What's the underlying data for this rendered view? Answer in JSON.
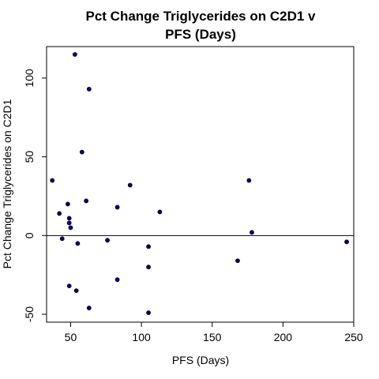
{
  "chart_data": {
    "type": "scatter",
    "title_lines": [
      "Pct Change Triglycerides on C2D1 v",
      "PFS (Days)"
    ],
    "xlabel": "PFS (Days)",
    "ylabel": "Pct Change Triglycerides on C2D1",
    "xlim": [
      33,
      250
    ],
    "ylim": [
      -55,
      120
    ],
    "x_ticks": [
      50,
      100,
      150,
      200,
      250
    ],
    "y_ticks": [
      -50,
      0,
      50,
      100
    ],
    "x_tick_labels": [
      "50",
      "100",
      "150",
      "200",
      "250"
    ],
    "y_tick_labels": [
      "-50",
      "0",
      "50",
      "100"
    ],
    "reference_line_y": 0,
    "point_color": "#00007a",
    "points": [
      {
        "x": 53,
        "y": 115
      },
      {
        "x": 63,
        "y": 93
      },
      {
        "x": 58,
        "y": 53
      },
      {
        "x": 37,
        "y": 35
      },
      {
        "x": 92,
        "y": 32
      },
      {
        "x": 61,
        "y": 22
      },
      {
        "x": 48,
        "y": 20
      },
      {
        "x": 83,
        "y": 18
      },
      {
        "x": 113,
        "y": 15
      },
      {
        "x": 42,
        "y": 14
      },
      {
        "x": 49,
        "y": 11
      },
      {
        "x": 49,
        "y": 8
      },
      {
        "x": 50,
        "y": 5
      },
      {
        "x": 176,
        "y": 35
      },
      {
        "x": 178,
        "y": 2
      },
      {
        "x": 44,
        "y": -2
      },
      {
        "x": 55,
        "y": -5
      },
      {
        "x": 76,
        "y": -3
      },
      {
        "x": 105,
        "y": -7
      },
      {
        "x": 168,
        "y": -16
      },
      {
        "x": 105,
        "y": -20
      },
      {
        "x": 245,
        "y": -4
      },
      {
        "x": 83,
        "y": -28
      },
      {
        "x": 49,
        "y": -32
      },
      {
        "x": 54,
        "y": -35
      },
      {
        "x": 63,
        "y": -46
      },
      {
        "x": 105,
        "y": -49
      }
    ]
  }
}
